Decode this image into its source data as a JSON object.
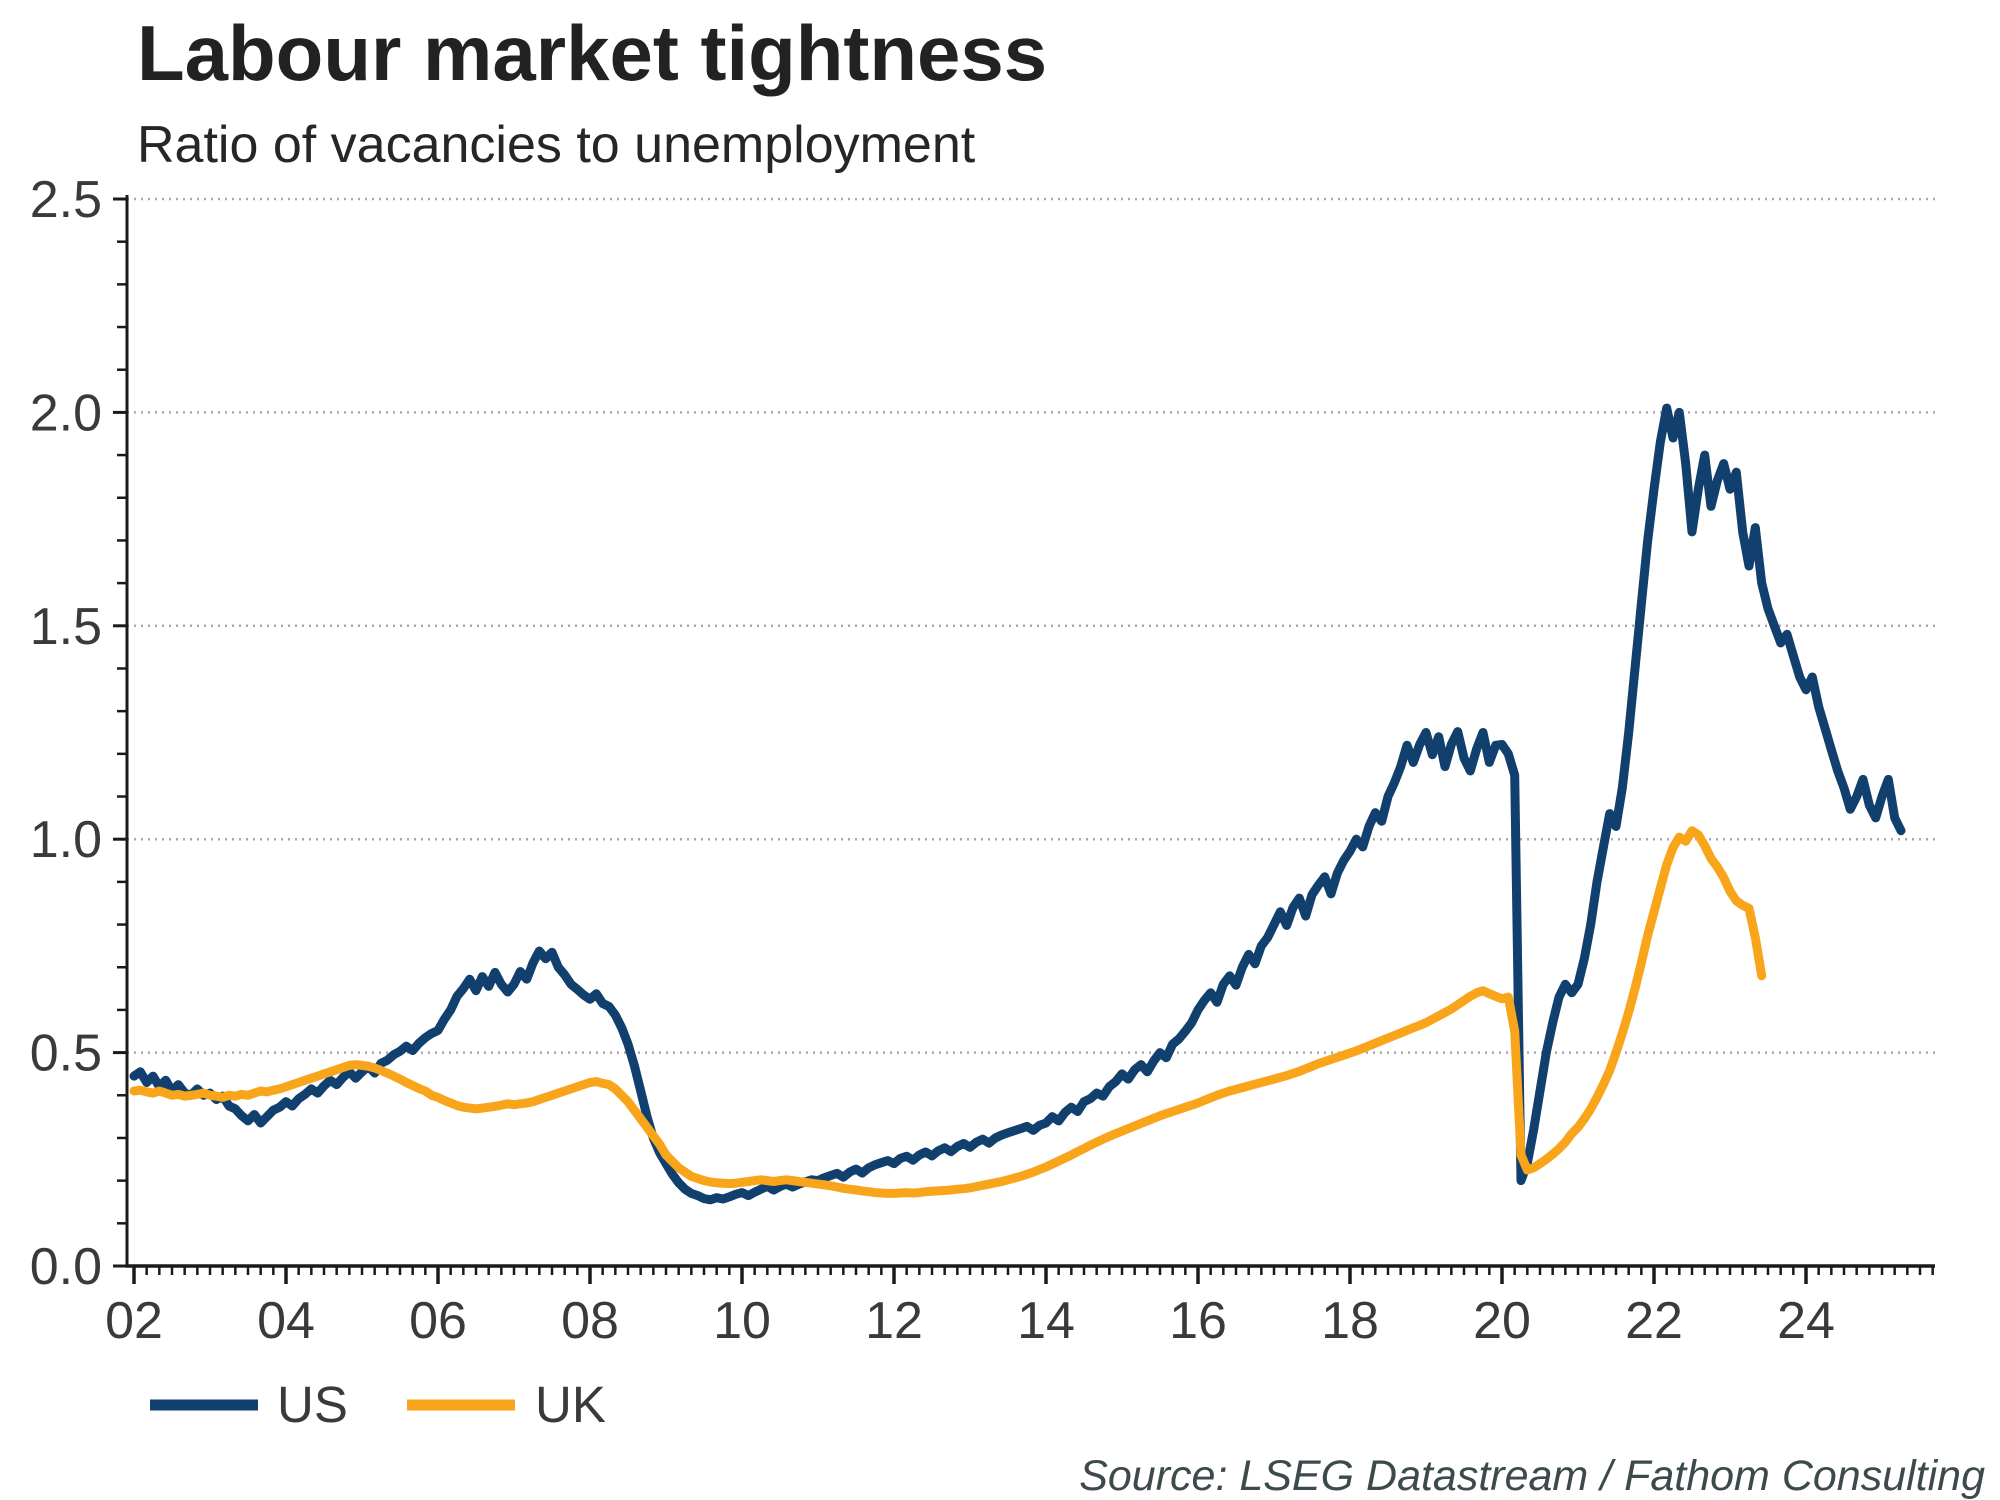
{
  "title": "Labour market tightness",
  "subtitle": "Ratio of vacancies to unemployment",
  "source": "Source: LSEG Datastream / Fathom Consulting",
  "legend": [
    {
      "label": "US",
      "color": "#11406f"
    },
    {
      "label": "UK",
      "color": "#f9a51b"
    }
  ],
  "colors": {
    "us_line": "#11406f",
    "uk_line": "#f9a51b",
    "axis": "#1a1a1a",
    "grid": "#a9a9a9",
    "tick_label": "#3a3a3a",
    "title": "#222222",
    "source": "#3d4a4c"
  },
  "chart_data": {
    "type": "line",
    "title": "Labour market tightness",
    "subtitle": "Ratio of vacancies to unemployment",
    "xlabel": "",
    "ylabel": "Ratio of vacancies to unemployment",
    "ylim": [
      0,
      2.5
    ],
    "xlim": [
      2002,
      2025.7
    ],
    "yticks": [
      0.0,
      0.5,
      1.0,
      1.5,
      2.0,
      2.5
    ],
    "ytick_labels": [
      "0.0",
      "0.5",
      "1.0",
      "1.5",
      "2.0",
      "2.5"
    ],
    "xticks": [
      2002,
      2004,
      2006,
      2008,
      2010,
      2012,
      2014,
      2016,
      2018,
      2020,
      2022,
      2024
    ],
    "xtick_labels": [
      "02",
      "04",
      "06",
      "08",
      "10",
      "12",
      "14",
      "16",
      "18",
      "20",
      "22",
      "24"
    ],
    "grid": "horizontal dotted at 0.5 intervals",
    "legend_position": "bottom-left",
    "x_step": 0.0833333,
    "series": [
      {
        "name": "US",
        "color": "#11406f",
        "x_start": 2002.0,
        "values": [
          0.445,
          0.455,
          0.43,
          0.445,
          0.42,
          0.435,
          0.41,
          0.425,
          0.405,
          0.4,
          0.415,
          0.4,
          0.405,
          0.39,
          0.398,
          0.375,
          0.368,
          0.352,
          0.34,
          0.355,
          0.335,
          0.35,
          0.365,
          0.372,
          0.385,
          0.375,
          0.392,
          0.402,
          0.415,
          0.405,
          0.422,
          0.435,
          0.425,
          0.442,
          0.455,
          0.44,
          0.455,
          0.468,
          0.452,
          0.475,
          0.482,
          0.495,
          0.503,
          0.515,
          0.505,
          0.522,
          0.535,
          0.545,
          0.552,
          0.578,
          0.6,
          0.632,
          0.65,
          0.672,
          0.645,
          0.678,
          0.655,
          0.688,
          0.66,
          0.642,
          0.66,
          0.69,
          0.672,
          0.71,
          0.738,
          0.72,
          0.735,
          0.7,
          0.682,
          0.66,
          0.648,
          0.635,
          0.625,
          0.638,
          0.615,
          0.608,
          0.588,
          0.558,
          0.52,
          0.47,
          0.41,
          0.35,
          0.3,
          0.265,
          0.24,
          0.215,
          0.195,
          0.18,
          0.17,
          0.165,
          0.158,
          0.155,
          0.16,
          0.157,
          0.162,
          0.168,
          0.172,
          0.165,
          0.173,
          0.18,
          0.187,
          0.178,
          0.186,
          0.192,
          0.185,
          0.192,
          0.197,
          0.202,
          0.2,
          0.207,
          0.212,
          0.217,
          0.208,
          0.22,
          0.227,
          0.218,
          0.23,
          0.237,
          0.242,
          0.247,
          0.24,
          0.252,
          0.257,
          0.248,
          0.26,
          0.267,
          0.258,
          0.27,
          0.277,
          0.268,
          0.28,
          0.287,
          0.278,
          0.29,
          0.297,
          0.288,
          0.3,
          0.307,
          0.312,
          0.317,
          0.322,
          0.327,
          0.318,
          0.33,
          0.335,
          0.35,
          0.34,
          0.36,
          0.372,
          0.362,
          0.385,
          0.392,
          0.405,
          0.398,
          0.42,
          0.432,
          0.45,
          0.438,
          0.46,
          0.472,
          0.455,
          0.48,
          0.5,
          0.488,
          0.52,
          0.532,
          0.55,
          0.57,
          0.6,
          0.622,
          0.64,
          0.618,
          0.66,
          0.68,
          0.658,
          0.7,
          0.73,
          0.708,
          0.75,
          0.77,
          0.8,
          0.83,
          0.798,
          0.84,
          0.862,
          0.82,
          0.87,
          0.892,
          0.912,
          0.872,
          0.92,
          0.95,
          0.972,
          1.0,
          0.982,
          1.03,
          1.062,
          1.042,
          1.1,
          1.132,
          1.17,
          1.22,
          1.18,
          1.222,
          1.25,
          1.198,
          1.24,
          1.17,
          1.222,
          1.252,
          1.19,
          1.16,
          1.212,
          1.25,
          1.18,
          1.22,
          1.222,
          1.2,
          1.15,
          0.2,
          0.24,
          0.32,
          0.41,
          0.5,
          0.57,
          0.63,
          0.66,
          0.64,
          0.66,
          0.72,
          0.8,
          0.9,
          0.98,
          1.06,
          1.03,
          1.12,
          1.25,
          1.4,
          1.55,
          1.7,
          1.82,
          1.93,
          2.01,
          1.94,
          2.0,
          1.88,
          1.72,
          1.82,
          1.9,
          1.78,
          1.84,
          1.88,
          1.82,
          1.86,
          1.72,
          1.64,
          1.73,
          1.6,
          1.54,
          1.5,
          1.46,
          1.48,
          1.43,
          1.38,
          1.35,
          1.38,
          1.31,
          1.26,
          1.21,
          1.16,
          1.12,
          1.07,
          1.1,
          1.14,
          1.08,
          1.05,
          1.1,
          1.14,
          1.05,
          1.02
        ]
      },
      {
        "name": "UK",
        "color": "#f9a51b",
        "x_start": 2002.0,
        "values": [
          0.41,
          0.412,
          0.408,
          0.405,
          0.41,
          0.405,
          0.4,
          0.402,
          0.398,
          0.4,
          0.402,
          0.405,
          0.4,
          0.398,
          0.395,
          0.4,
          0.398,
          0.402,
          0.4,
          0.405,
          0.41,
          0.408,
          0.412,
          0.415,
          0.42,
          0.425,
          0.43,
          0.435,
          0.44,
          0.445,
          0.45,
          0.455,
          0.46,
          0.465,
          0.47,
          0.472,
          0.47,
          0.468,
          0.464,
          0.458,
          0.452,
          0.445,
          0.438,
          0.43,
          0.423,
          0.416,
          0.41,
          0.4,
          0.395,
          0.388,
          0.382,
          0.376,
          0.372,
          0.37,
          0.368,
          0.37,
          0.372,
          0.374,
          0.377,
          0.38,
          0.378,
          0.38,
          0.382,
          0.385,
          0.39,
          0.395,
          0.4,
          0.405,
          0.41,
          0.415,
          0.42,
          0.425,
          0.43,
          0.432,
          0.428,
          0.425,
          0.415,
          0.4,
          0.385,
          0.365,
          0.345,
          0.325,
          0.305,
          0.285,
          0.26,
          0.245,
          0.23,
          0.22,
          0.21,
          0.205,
          0.2,
          0.197,
          0.195,
          0.194,
          0.193,
          0.194,
          0.196,
          0.198,
          0.2,
          0.202,
          0.2,
          0.198,
          0.2,
          0.202,
          0.2,
          0.198,
          0.196,
          0.194,
          0.192,
          0.19,
          0.188,
          0.185,
          0.182,
          0.18,
          0.178,
          0.176,
          0.174,
          0.172,
          0.171,
          0.17,
          0.17,
          0.171,
          0.172,
          0.171,
          0.172,
          0.174,
          0.175,
          0.176,
          0.177,
          0.178,
          0.18,
          0.181,
          0.183,
          0.186,
          0.189,
          0.192,
          0.195,
          0.198,
          0.202,
          0.206,
          0.21,
          0.215,
          0.22,
          0.226,
          0.232,
          0.239,
          0.246,
          0.253,
          0.26,
          0.268,
          0.275,
          0.283,
          0.29,
          0.297,
          0.304,
          0.31,
          0.316,
          0.322,
          0.328,
          0.334,
          0.34,
          0.346,
          0.352,
          0.357,
          0.362,
          0.367,
          0.372,
          0.377,
          0.382,
          0.388,
          0.394,
          0.4,
          0.405,
          0.41,
          0.414,
          0.418,
          0.422,
          0.426,
          0.43,
          0.434,
          0.438,
          0.442,
          0.446,
          0.451,
          0.456,
          0.462,
          0.468,
          0.474,
          0.479,
          0.484,
          0.489,
          0.494,
          0.499,
          0.504,
          0.51,
          0.516,
          0.522,
          0.528,
          0.534,
          0.54,
          0.546,
          0.552,
          0.558,
          0.564,
          0.57,
          0.578,
          0.586,
          0.594,
          0.602,
          0.612,
          0.622,
          0.632,
          0.64,
          0.645,
          0.638,
          0.632,
          0.626,
          0.63,
          0.55,
          0.26,
          0.225,
          0.23,
          0.24,
          0.25,
          0.262,
          0.275,
          0.29,
          0.31,
          0.325,
          0.345,
          0.368,
          0.395,
          0.425,
          0.458,
          0.5,
          0.545,
          0.595,
          0.65,
          0.71,
          0.775,
          0.83,
          0.885,
          0.94,
          0.98,
          1.005,
          0.995,
          1.02,
          1.01,
          0.985,
          0.955,
          0.935,
          0.91,
          0.878,
          0.856,
          0.845,
          0.838,
          0.77,
          0.68
        ]
      }
    ]
  }
}
